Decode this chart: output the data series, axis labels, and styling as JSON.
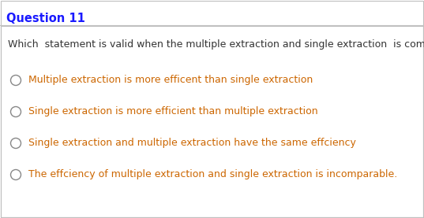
{
  "title": "Question 11",
  "question": "Which  statement is valid when the multiple extraction and single extraction  is compared.",
  "options": [
    "Multiple extraction is more efficent than single extraction",
    "Single extraction is more efficient than multiple extraction",
    "Single extraction and multiple extraction have the same effciency",
    "The effciency of multiple extraction and single extraction is incomparable."
  ],
  "bg_color": "#ffffff",
  "border_color": "#c0c0c0",
  "title_color": "#1a1aff",
  "question_color": "#333333",
  "option_color": "#cc6600",
  "circle_edgecolor": "#888888",
  "title_fontsize": 10.5,
  "question_fontsize": 9.0,
  "option_fontsize": 9.0,
  "fig_width": 5.37,
  "fig_height": 2.77,
  "dpi": 100
}
